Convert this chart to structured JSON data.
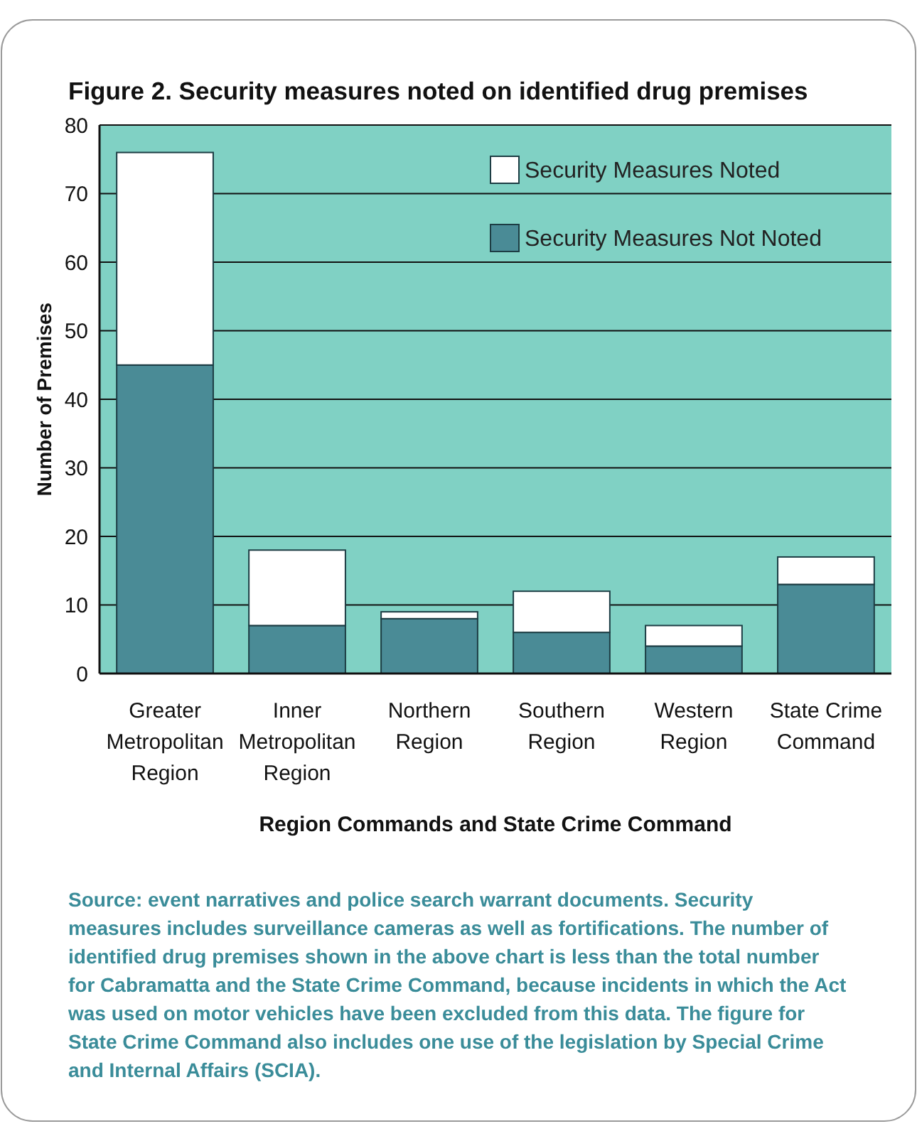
{
  "chart_data": {
    "type": "bar",
    "title": "Figure 2.  Security measures noted on identified drug premises",
    "xlabel": "Region Commands and State Crime Command",
    "ylabel": "Number of Premises",
    "categories": [
      "Greater Metropolitan Region",
      "Inner Metropolitan Region",
      "Northern Region",
      "Southern Region",
      "Western Region",
      "State Crime Command"
    ],
    "series": [
      {
        "name": "Security Measures Not Noted",
        "color": "#4a8b96",
        "values": [
          45,
          7,
          8,
          6,
          4,
          13
        ]
      },
      {
        "name": "Security Measures Noted",
        "color": "#ffffff",
        "values": [
          31,
          11,
          1,
          6,
          3,
          4
        ]
      }
    ],
    "stacked": true,
    "ylim": [
      0,
      80
    ],
    "yticks": [
      0,
      10,
      20,
      30,
      40,
      50,
      60,
      70,
      80
    ],
    "grid": "y",
    "legend": "top right",
    "annotations": [
      "Source: event narratives and police search warrant documents. Security measures includes surveillance cameras as well as fortifications. The number of identified drug premises shown in the above chart is less than the total number for Cabramatta and the State Crime Command, because incidents in which the Act was used on motor vehicles have been excluded from this data. The figure for State Crime Command also includes one use of the legislation by Special Crime and Internal Affairs (SCIA)."
    ]
  }
}
